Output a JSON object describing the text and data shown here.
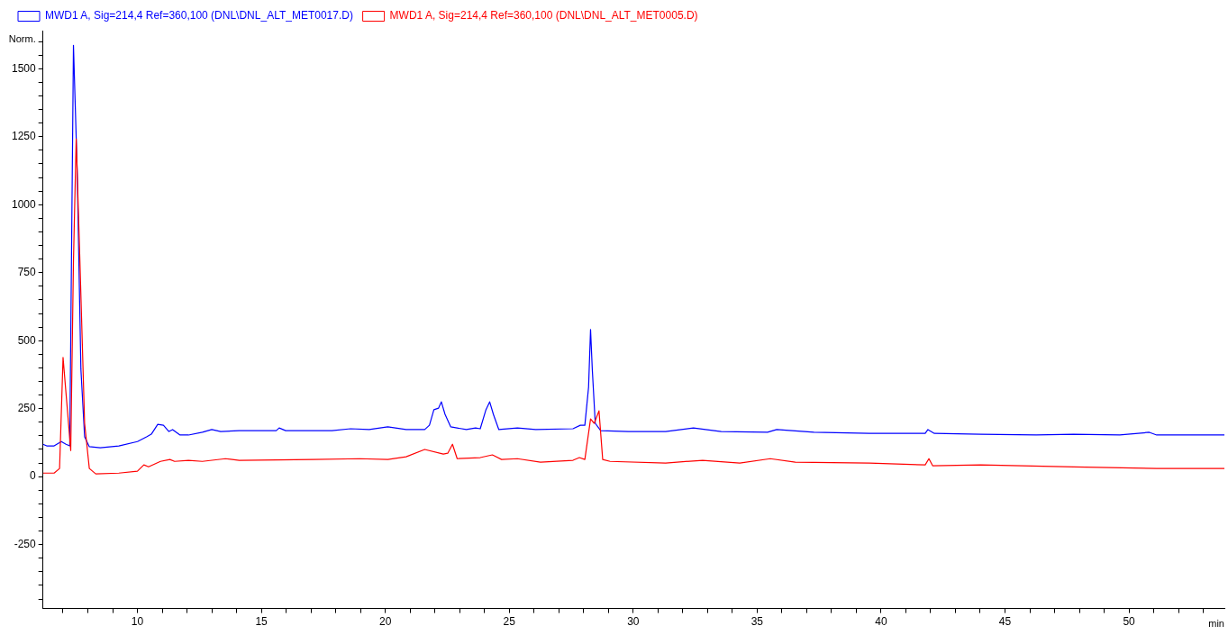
{
  "chart_data": {
    "type": "line",
    "xlabel": "min",
    "ylabel": "Norm.",
    "legend": "top left",
    "grid": false,
    "marker": "none",
    "line_style": "solid",
    "xlim": [
      6.19,
      53.85
    ],
    "ylim": [
      -485,
      1640
    ],
    "xticks": [
      {
        "value": 7,
        "label": null
      },
      {
        "value": 8,
        "label": null
      },
      {
        "value": 9,
        "label": null
      },
      10,
      {
        "value": 11,
        "label": null
      },
      {
        "value": 12,
        "label": null
      },
      {
        "value": 13,
        "label": null
      },
      {
        "value": 14,
        "label": null
      },
      15,
      {
        "value": 16,
        "label": null
      },
      {
        "value": 17,
        "label": null
      },
      {
        "value": 18,
        "label": null
      },
      {
        "value": 19,
        "label": null
      },
      20,
      {
        "value": 21,
        "label": null
      },
      {
        "value": 22,
        "label": null
      },
      {
        "value": 23,
        "label": null
      },
      {
        "value": 24,
        "label": null
      },
      25,
      {
        "value": 26,
        "label": null
      },
      {
        "value": 27,
        "label": null
      },
      {
        "value": 28,
        "label": null
      },
      {
        "value": 29,
        "label": null
      },
      30,
      {
        "value": 31,
        "label": null
      },
      {
        "value": 32,
        "label": null
      },
      {
        "value": 33,
        "label": null
      },
      {
        "value": 34,
        "label": null
      },
      35,
      {
        "value": 36,
        "label": null
      },
      {
        "value": 37,
        "label": null
      },
      {
        "value": 38,
        "label": null
      },
      {
        "value": 39,
        "label": null
      },
      40,
      {
        "value": 41,
        "label": null
      },
      {
        "value": 42,
        "label": null
      },
      {
        "value": 43,
        "label": null
      },
      {
        "value": 44,
        "label": null
      },
      45,
      {
        "value": 46,
        "label": null
      },
      {
        "value": 47,
        "label": null
      },
      {
        "value": 48,
        "label": null
      },
      {
        "value": 49,
        "label": null
      },
      50,
      {
        "value": 51,
        "label": null
      },
      {
        "value": 52,
        "label": null
      },
      {
        "value": 53,
        "label": null
      }
    ],
    "yticks": [
      {
        "value": -450,
        "label": null
      },
      {
        "value": -400,
        "label": null
      },
      {
        "value": -350,
        "label": null
      },
      {
        "value": -300,
        "label": null
      },
      -250,
      {
        "value": -200,
        "label": null
      },
      {
        "value": -150,
        "label": null
      },
      {
        "value": -100,
        "label": null
      },
      {
        "value": -50,
        "label": null
      },
      0,
      {
        "value": 50,
        "label": null
      },
      {
        "value": 100,
        "label": null
      },
      {
        "value": 150,
        "label": null
      },
      {
        "value": 200,
        "label": null
      },
      250,
      {
        "value": 300,
        "label": null
      },
      {
        "value": 350,
        "label": null
      },
      {
        "value": 400,
        "label": null
      },
      {
        "value": 450,
        "label": null
      },
      500,
      {
        "value": 550,
        "label": null
      },
      {
        "value": 600,
        "label": null
      },
      {
        "value": 650,
        "label": null
      },
      {
        "value": 700,
        "label": null
      },
      750,
      {
        "value": 800,
        "label": null
      },
      {
        "value": 850,
        "label": null
      },
      {
        "value": 900,
        "label": null
      },
      {
        "value": 950,
        "label": null
      },
      1000,
      {
        "value": 1050,
        "label": null
      },
      {
        "value": 1100,
        "label": null
      },
      {
        "value": 1150,
        "label": null
      },
      {
        "value": 1200,
        "label": null
      },
      1250,
      {
        "value": 1300,
        "label": null
      },
      {
        "value": 1350,
        "label": null
      },
      {
        "value": 1400,
        "label": null
      },
      {
        "value": 1450,
        "label": null
      },
      1500,
      {
        "value": 1550,
        "label": null
      },
      {
        "value": 1600,
        "label": null
      }
    ],
    "series": [
      {
        "name": "MWD1 A, Sig=214,4 Ref=360,100 (DNL\\DNL_ALT_MET0017.D)",
        "color": "#0000ff",
        "x": [
          6.19,
          6.34,
          6.64,
          6.93,
          7.12,
          7.27,
          7.42,
          7.57,
          7.72,
          7.87,
          8.06,
          8.5,
          9.25,
          10,
          10.37,
          10.56,
          10.82,
          11.05,
          11.27,
          11.42,
          11.72,
          12.06,
          12.62,
          13,
          13.36,
          14.11,
          15.6,
          15.72,
          15.98,
          17.85,
          18.6,
          19.35,
          20.1,
          20.84,
          21.59,
          21.78,
          21.96,
          22.15,
          22.26,
          22.41,
          22.64,
          23.27,
          23.64,
          23.83,
          24.06,
          24.21,
          24.36,
          24.58,
          25.33,
          26.07,
          27.57,
          27.87,
          28.05,
          28.2,
          28.28,
          28.35,
          28.47,
          28.69,
          29.81,
          31.31,
          32.43,
          33.55,
          35.42,
          35.79,
          37.29,
          39.53,
          41.78,
          41.89,
          42.15,
          44.02,
          46.26,
          47.76,
          49.63,
          50.82,
          51.12,
          53.85
        ],
        "values": [
          119,
          113,
          113,
          129,
          119,
          113,
          1586,
          1125,
          395,
          146,
          110,
          106,
          113,
          129,
          146,
          156,
          192,
          189,
          166,
          173,
          153,
          153,
          163,
          173,
          166,
          169,
          169,
          179,
          169,
          169,
          176,
          173,
          183,
          173,
          173,
          189,
          246,
          252,
          275,
          229,
          183,
          173,
          179,
          176,
          246,
          275,
          229,
          173,
          179,
          173,
          176,
          189,
          189,
          329,
          541,
          395,
          196,
          169,
          166,
          166,
          179,
          166,
          163,
          173,
          163,
          159,
          159,
          173,
          159,
          156,
          153,
          156,
          153,
          163,
          153,
          153
        ]
      },
      {
        "name": "MWD1 A, Sig=214,4 Ref=360,100 (DNL\\DNL_ALT_MET0005.D)",
        "color": "#ff0000",
        "x": [
          6.19,
          6.64,
          6.86,
          7.0,
          7.16,
          7.31,
          7.42,
          7.53,
          7.68,
          7.87,
          8.06,
          8.32,
          9.25,
          10,
          10.26,
          10.45,
          10.93,
          11.31,
          11.5,
          12.06,
          12.62,
          13.55,
          14.11,
          17.1,
          18.97,
          20.1,
          20.84,
          21.59,
          22.34,
          22.52,
          22.71,
          22.9,
          23.83,
          24.32,
          24.69,
          25.33,
          26.26,
          27.57,
          27.83,
          28.05,
          28.28,
          28.43,
          28.62,
          28.77,
          29.07,
          31.31,
          32.8,
          34.3,
          35.53,
          36.54,
          39.53,
          41.78,
          41.93,
          42.08,
          44.02,
          47.76,
          51.12,
          53.85
        ],
        "values": [
          13,
          13,
          30,
          438,
          262,
          96,
          793,
          1241,
          793,
          196,
          30,
          10,
          13,
          20,
          43,
          36,
          56,
          63,
          56,
          60,
          56,
          66,
          60,
          63,
          66,
          63,
          73,
          100,
          83,
          86,
          119,
          66,
          70,
          80,
          63,
          66,
          53,
          60,
          70,
          63,
          212,
          196,
          242,
          63,
          56,
          50,
          60,
          50,
          66,
          53,
          50,
          43,
          66,
          40,
          43,
          36,
          30,
          30
        ]
      }
    ]
  }
}
